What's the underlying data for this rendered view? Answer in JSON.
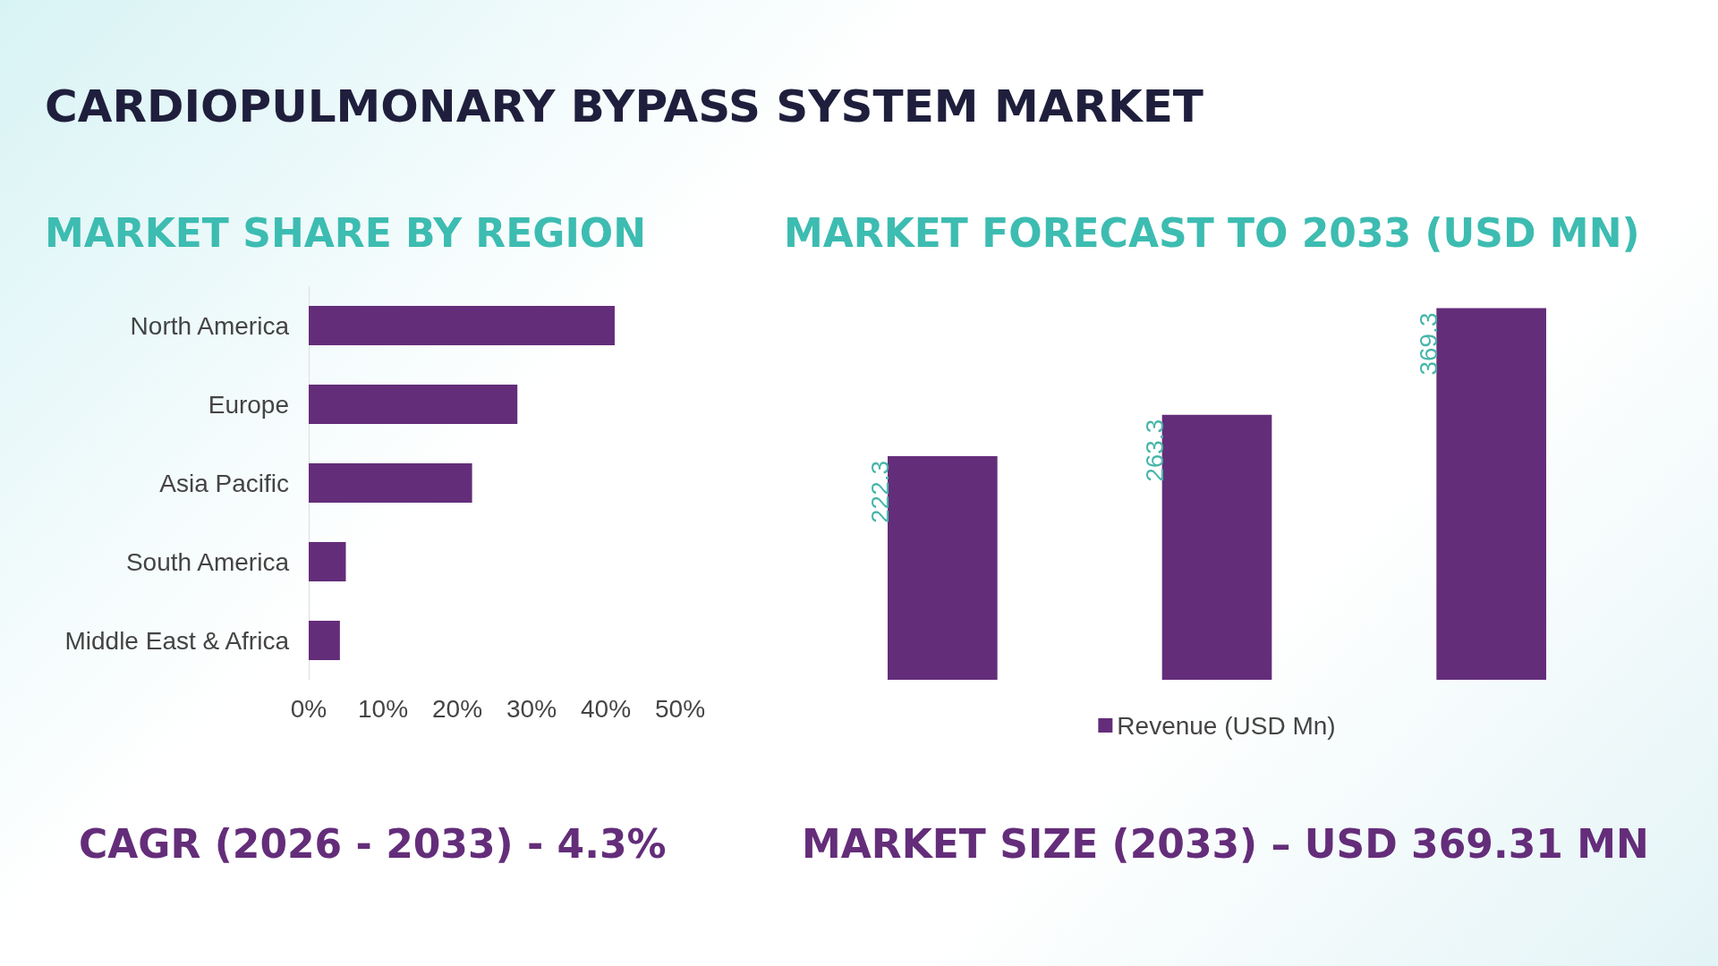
{
  "chart_data": [
    {
      "type": "bar",
      "title": "CARDIOPULMONARY BYPASS SYSTEM MARKET",
      "subtitle": "MARKET SHARE BY REGION",
      "orientation": "horizontal",
      "categories": [
        "North America",
        "Europe",
        "Asia Pacific",
        "South America",
        "Middle East & Africa"
      ],
      "values": [
        41.2,
        28.1,
        22.0,
        5.0,
        4.2
      ],
      "color": "#642d7a",
      "xlim": [
        0,
        50
      ],
      "xticks": [
        {
          "value": 0,
          "label": "0%"
        },
        {
          "value": 10,
          "label": "10%"
        },
        {
          "value": 20,
          "label": "20%"
        },
        {
          "value": 30,
          "label": "30%"
        },
        {
          "value": 40,
          "label": "40%"
        },
        {
          "value": 50,
          "label": "50%"
        }
      ],
      "grid": false,
      "legend": false,
      "annotations": [
        "CAGR (2026 - 2033) - 4.3%"
      ]
    },
    {
      "type": "bar",
      "title": "MARKET FORECAST TO 2033 (USD MN)",
      "categories": [
        null,
        null,
        null
      ],
      "series": [
        {
          "name": "Revenue (USD Mn)",
          "color": "#642d7a",
          "values": [
            222.3,
            263.3,
            369.3
          ]
        }
      ],
      "data_labels": true,
      "legend": "bottom",
      "grid": false,
      "annotations": [
        "MARKET SIZE (2033) – USD 369.31 MN"
      ]
    }
  ]
}
